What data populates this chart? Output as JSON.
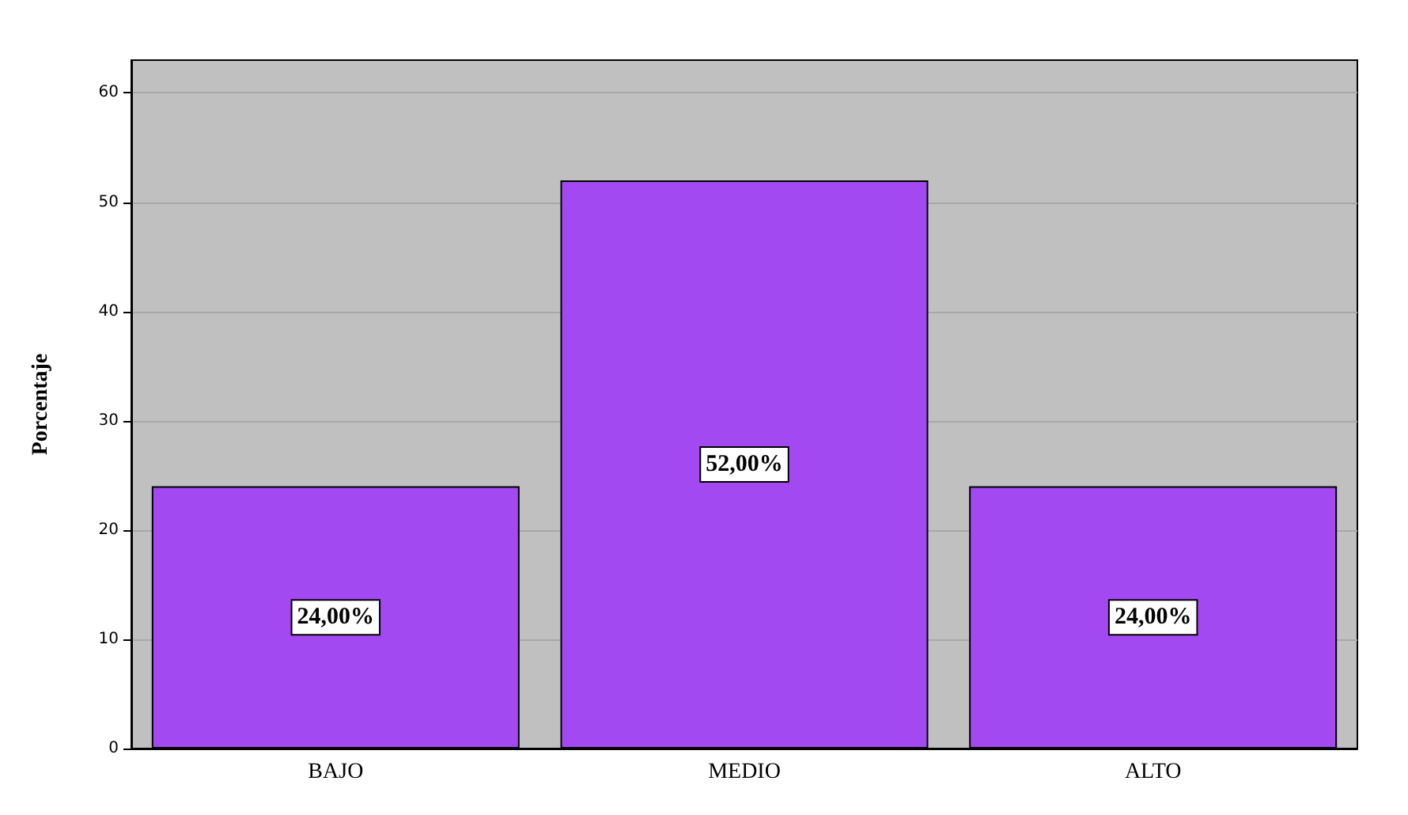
{
  "chart_data": {
    "type": "bar",
    "ylabel": "Porcentaje",
    "categories": [
      "BAJO",
      "MEDIO",
      "ALTO"
    ],
    "values": [
      24,
      52,
      24
    ],
    "value_labels": [
      "24,00%",
      "52,00%",
      "24,00%"
    ],
    "color": "#a349f2",
    "ylim": [
      0,
      63
    ],
    "yticks": [
      0,
      10,
      20,
      30,
      40,
      50,
      60
    ],
    "grid": "y"
  }
}
